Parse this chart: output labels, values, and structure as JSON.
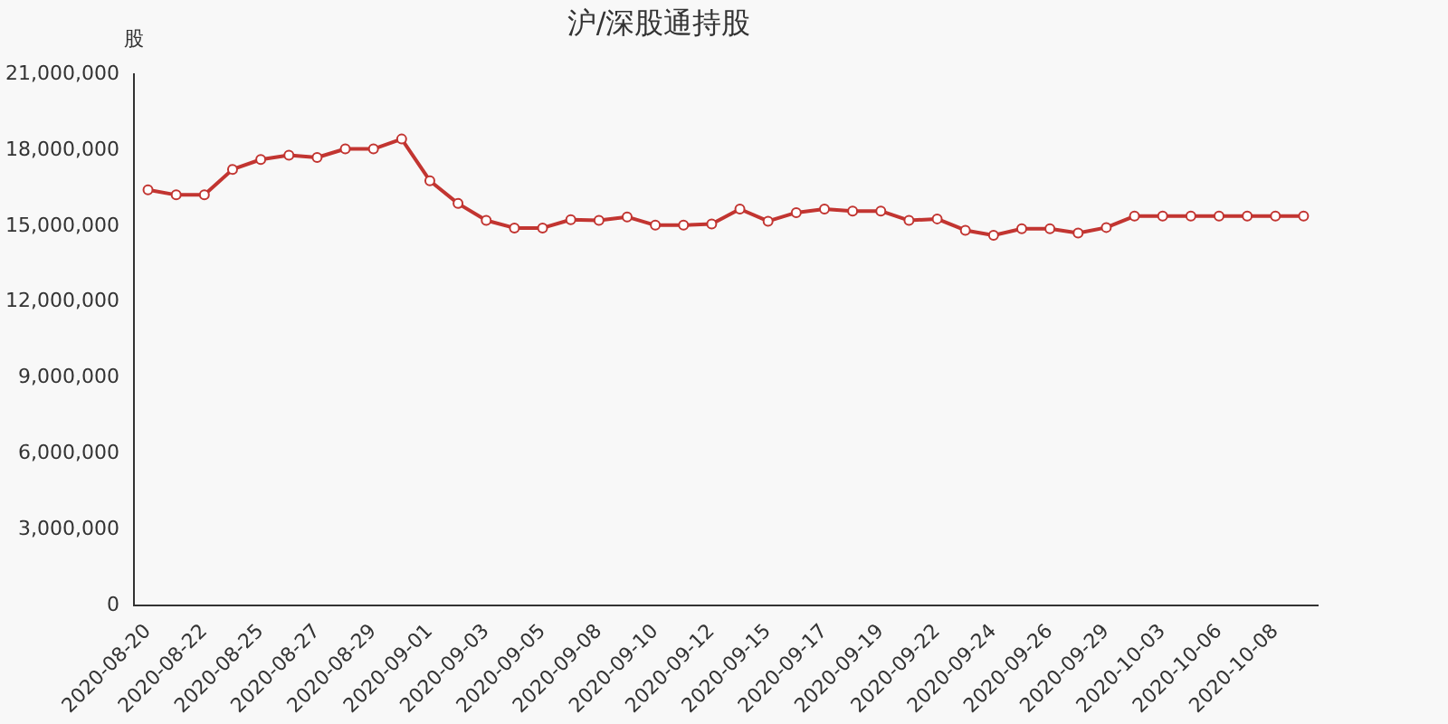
{
  "chart_data": {
    "type": "line",
    "title": "沪/深股通持股",
    "ylabel": "股",
    "categories": [
      "2020-08-20",
      null,
      "2020-08-22",
      null,
      "2020-08-25",
      null,
      "2020-08-27",
      null,
      "2020-08-29",
      null,
      "2020-09-01",
      null,
      "2020-09-03",
      null,
      "2020-09-05",
      null,
      "2020-09-08",
      null,
      "2020-09-10",
      null,
      "2020-09-12",
      null,
      "2020-09-15",
      null,
      "2020-09-17",
      null,
      "2020-09-19",
      null,
      "2020-09-22",
      null,
      "2020-09-24",
      null,
      "2020-09-26",
      null,
      "2020-09-29",
      null,
      "2020-10-03",
      null,
      "2020-10-06",
      null,
      "2020-10-08",
      null
    ],
    "series": [
      {
        "color": "#c23531",
        "values": [
          16440000,
          16240000,
          16240000,
          17250000,
          17640000,
          17810000,
          17720000,
          18060000,
          18060000,
          18450000,
          16800000,
          15900000,
          15230000,
          14930000,
          14930000,
          15260000,
          15230000,
          15370000,
          15040000,
          15040000,
          15090000,
          15680000,
          15200000,
          15540000,
          15680000,
          15600000,
          15600000,
          15230000,
          15290000,
          14840000,
          14640000,
          14900000,
          14900000,
          14730000,
          14950000,
          15400000,
          15400000,
          15400000,
          15400000,
          15400000,
          15400000,
          15400000
        ]
      }
    ],
    "ylim": [
      0,
      21000000
    ],
    "yticks": [
      {
        "value": 0,
        "label": "0"
      },
      {
        "value": 3000000,
        "label": "3,000,000"
      },
      {
        "value": 6000000,
        "label": "6,000,000"
      },
      {
        "value": 9000000,
        "label": "9,000,000"
      },
      {
        "value": 12000000,
        "label": "12,000,000"
      },
      {
        "value": 15000000,
        "label": "15,000,000"
      },
      {
        "value": 18000000,
        "label": "18,000,000"
      },
      {
        "value": 21000000,
        "label": "21,000,000"
      }
    ],
    "grid": false,
    "legend": false,
    "marker": "circle",
    "line_style": "solid"
  }
}
